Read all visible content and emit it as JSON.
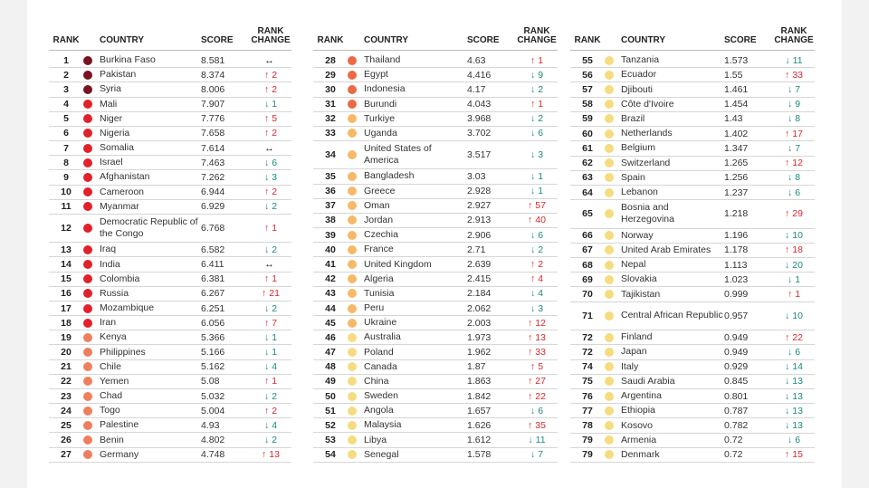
{
  "headers": {
    "rank": "RANK",
    "country": "COUNTRY",
    "score": "SCORE",
    "change": "RANK CHANGE"
  },
  "tier_colors": {
    "extreme_dark": "#7a1222",
    "extreme": "#e3202b",
    "high": "#ef7f5c",
    "high_orange": "#eb6a45",
    "turbulent": "#f6b968",
    "moderate": "#f5dc7e"
  },
  "change_icons": {
    "up": "arrow-up-icon",
    "down": "arrow-down-icon",
    "same": "arrow-left-right-icon"
  },
  "columns": [
    [
      {
        "rank": "1",
        "country": "Burkina Faso",
        "score": "8.581",
        "dir": "same",
        "change": "",
        "tier": "extreme_dark"
      },
      {
        "rank": "2",
        "country": "Pakistan",
        "score": "8.374",
        "dir": "up",
        "change": "2",
        "tier": "extreme_dark"
      },
      {
        "rank": "3",
        "country": "Syria",
        "score": "8.006",
        "dir": "up",
        "change": "2",
        "tier": "extreme_dark"
      },
      {
        "rank": "4",
        "country": "Mali",
        "score": "7.907",
        "dir": "down",
        "change": "1",
        "tier": "extreme"
      },
      {
        "rank": "5",
        "country": "Niger",
        "score": "7.776",
        "dir": "up",
        "change": "5",
        "tier": "extreme"
      },
      {
        "rank": "6",
        "country": "Nigeria",
        "score": "7.658",
        "dir": "up",
        "change": "2",
        "tier": "extreme"
      },
      {
        "rank": "7",
        "country": "Somalia",
        "score": "7.614",
        "dir": "same",
        "change": "",
        "tier": "extreme"
      },
      {
        "rank": "8",
        "country": "Israel",
        "score": "7.463",
        "dir": "down",
        "change": "6",
        "tier": "extreme"
      },
      {
        "rank": "9",
        "country": "Afghanistan",
        "score": "7.262",
        "dir": "down",
        "change": "3",
        "tier": "extreme"
      },
      {
        "rank": "10",
        "country": "Cameroon",
        "score": "6.944",
        "dir": "up",
        "change": "2",
        "tier": "extreme"
      },
      {
        "rank": "11",
        "country": "Myanmar",
        "score": "6.929",
        "dir": "down",
        "change": "2",
        "tier": "extreme"
      },
      {
        "rank": "12",
        "country": "Democratic Republic of the Congo",
        "score": "6.768",
        "dir": "up",
        "change": "1",
        "tier": "extreme",
        "double": true
      },
      {
        "rank": "13",
        "country": "Iraq",
        "score": "6.582",
        "dir": "down",
        "change": "2",
        "tier": "extreme"
      },
      {
        "rank": "14",
        "country": "India",
        "score": "6.411",
        "dir": "same",
        "change": "",
        "tier": "extreme"
      },
      {
        "rank": "15",
        "country": "Colombia",
        "score": "6.381",
        "dir": "up",
        "change": "1",
        "tier": "extreme"
      },
      {
        "rank": "16",
        "country": "Russia",
        "score": "6.267",
        "dir": "up",
        "change": "21",
        "tier": "extreme"
      },
      {
        "rank": "17",
        "country": "Mozambique",
        "score": "6.251",
        "dir": "down",
        "change": "2",
        "tier": "extreme"
      },
      {
        "rank": "18",
        "country": "Iran",
        "score": "6.056",
        "dir": "up",
        "change": "7",
        "tier": "extreme"
      },
      {
        "rank": "19",
        "country": "Kenya",
        "score": "5.366",
        "dir": "down",
        "change": "1",
        "tier": "high"
      },
      {
        "rank": "20",
        "country": "Philippines",
        "score": "5.166",
        "dir": "down",
        "change": "1",
        "tier": "high"
      },
      {
        "rank": "21",
        "country": "Chile",
        "score": "5.162",
        "dir": "down",
        "change": "4",
        "tier": "high"
      },
      {
        "rank": "22",
        "country": "Yemen",
        "score": "5.08",
        "dir": "up",
        "change": "1",
        "tier": "high"
      },
      {
        "rank": "23",
        "country": "Chad",
        "score": "5.032",
        "dir": "down",
        "change": "2",
        "tier": "high"
      },
      {
        "rank": "24",
        "country": "Togo",
        "score": "5.004",
        "dir": "up",
        "change": "2",
        "tier": "high"
      },
      {
        "rank": "25",
        "country": "Palestine",
        "score": "4.93",
        "dir": "down",
        "change": "4",
        "tier": "high"
      },
      {
        "rank": "26",
        "country": "Benin",
        "score": "4.802",
        "dir": "down",
        "change": "2",
        "tier": "high"
      },
      {
        "rank": "27",
        "country": "Germany",
        "score": "4.748",
        "dir": "up",
        "change": "13",
        "tier": "high"
      }
    ],
    [
      {
        "rank": "28",
        "country": "Thailand",
        "score": "4.63",
        "dir": "up",
        "change": "1",
        "tier": "high_orange"
      },
      {
        "rank": "29",
        "country": "Egypt",
        "score": "4.416",
        "dir": "down",
        "change": "9",
        "tier": "high_orange"
      },
      {
        "rank": "30",
        "country": "Indonesia",
        "score": "4.17",
        "dir": "down",
        "change": "2",
        "tier": "high_orange"
      },
      {
        "rank": "31",
        "country": "Burundi",
        "score": "4.043",
        "dir": "up",
        "change": "1",
        "tier": "high_orange"
      },
      {
        "rank": "32",
        "country": "Turkiye",
        "score": "3.968",
        "dir": "down",
        "change": "2",
        "tier": "turbulent"
      },
      {
        "rank": "33",
        "country": "Uganda",
        "score": "3.702",
        "dir": "down",
        "change": "6",
        "tier": "turbulent"
      },
      {
        "rank": "34",
        "country": "United States of America",
        "score": "3.517",
        "dir": "down",
        "change": "3",
        "tier": "turbulent",
        "double": true
      },
      {
        "rank": "35",
        "country": "Bangladesh",
        "score": "3.03",
        "dir": "down",
        "change": "1",
        "tier": "turbulent"
      },
      {
        "rank": "36",
        "country": "Greece",
        "score": "2.928",
        "dir": "down",
        "change": "1",
        "tier": "turbulent"
      },
      {
        "rank": "37",
        "country": "Oman",
        "score": "2.927",
        "dir": "up",
        "change": "57",
        "tier": "turbulent"
      },
      {
        "rank": "38",
        "country": "Jordan",
        "score": "2.913",
        "dir": "up",
        "change": "40",
        "tier": "turbulent"
      },
      {
        "rank": "39",
        "country": "Czechia",
        "score": "2.906",
        "dir": "down",
        "change": "6",
        "tier": "turbulent"
      },
      {
        "rank": "40",
        "country": "France",
        "score": "2.71",
        "dir": "down",
        "change": "2",
        "tier": "turbulent"
      },
      {
        "rank": "41",
        "country": "United Kingdom",
        "score": "2.639",
        "dir": "up",
        "change": "2",
        "tier": "turbulent"
      },
      {
        "rank": "42",
        "country": "Algeria",
        "score": "2.415",
        "dir": "up",
        "change": "4",
        "tier": "turbulent"
      },
      {
        "rank": "43",
        "country": "Tunisia",
        "score": "2.184",
        "dir": "down",
        "change": "4",
        "tier": "turbulent"
      },
      {
        "rank": "44",
        "country": "Peru",
        "score": "2.062",
        "dir": "down",
        "change": "3",
        "tier": "turbulent"
      },
      {
        "rank": "45",
        "country": "Ukraine",
        "score": "2.003",
        "dir": "up",
        "change": "12",
        "tier": "turbulent"
      },
      {
        "rank": "46",
        "country": "Australia",
        "score": "1.973",
        "dir": "up",
        "change": "13",
        "tier": "moderate"
      },
      {
        "rank": "47",
        "country": "Poland",
        "score": "1.962",
        "dir": "up",
        "change": "33",
        "tier": "moderate"
      },
      {
        "rank": "48",
        "country": "Canada",
        "score": "1.87",
        "dir": "up",
        "change": "5",
        "tier": "moderate"
      },
      {
        "rank": "49",
        "country": "China",
        "score": "1.863",
        "dir": "up",
        "change": "27",
        "tier": "moderate"
      },
      {
        "rank": "50",
        "country": "Sweden",
        "score": "1.842",
        "dir": "up",
        "change": "22",
        "tier": "moderate"
      },
      {
        "rank": "51",
        "country": "Angola",
        "score": "1.657",
        "dir": "down",
        "change": "6",
        "tier": "moderate"
      },
      {
        "rank": "52",
        "country": "Malaysia",
        "score": "1.626",
        "dir": "up",
        "change": "35",
        "tier": "moderate"
      },
      {
        "rank": "53",
        "country": "Libya",
        "score": "1.612",
        "dir": "down",
        "change": "11",
        "tier": "moderate"
      },
      {
        "rank": "54",
        "country": "Senegal",
        "score": "1.578",
        "dir": "down",
        "change": "7",
        "tier": "moderate"
      }
    ],
    [
      {
        "rank": "55",
        "country": "Tanzania",
        "score": "1.573",
        "dir": "down",
        "change": "11",
        "tier": "moderate"
      },
      {
        "rank": "56",
        "country": "Ecuador",
        "score": "1.55",
        "dir": "up",
        "change": "33",
        "tier": "moderate"
      },
      {
        "rank": "57",
        "country": "Djibouti",
        "score": "1.461",
        "dir": "down",
        "change": "7",
        "tier": "moderate"
      },
      {
        "rank": "58",
        "country": "Côte d'Ivoire",
        "score": "1.454",
        "dir": "down",
        "change": "9",
        "tier": "moderate"
      },
      {
        "rank": "59",
        "country": "Brazil",
        "score": "1.43",
        "dir": "down",
        "change": "8",
        "tier": "moderate"
      },
      {
        "rank": "60",
        "country": "Netherlands",
        "score": "1.402",
        "dir": "up",
        "change": "17",
        "tier": "moderate"
      },
      {
        "rank": "61",
        "country": "Belgium",
        "score": "1.347",
        "dir": "down",
        "change": "7",
        "tier": "moderate"
      },
      {
        "rank": "62",
        "country": "Switzerland",
        "score": "1.265",
        "dir": "up",
        "change": "12",
        "tier": "moderate"
      },
      {
        "rank": "63",
        "country": "Spain",
        "score": "1.256",
        "dir": "down",
        "change": "8",
        "tier": "moderate"
      },
      {
        "rank": "64",
        "country": "Lebanon",
        "score": "1.237",
        "dir": "down",
        "change": "6",
        "tier": "moderate"
      },
      {
        "rank": "65",
        "country": "Bosnia and Herzegovina",
        "score": "1.218",
        "dir": "up",
        "change": "29",
        "tier": "moderate",
        "double": true
      },
      {
        "rank": "66",
        "country": "Norway",
        "score": "1.196",
        "dir": "down",
        "change": "10",
        "tier": "moderate"
      },
      {
        "rank": "67",
        "country": "United Arab Emirates",
        "score": "1.178",
        "dir": "up",
        "change": "18",
        "tier": "moderate"
      },
      {
        "rank": "68",
        "country": "Nepal",
        "score": "1.113",
        "dir": "down",
        "change": "20",
        "tier": "moderate"
      },
      {
        "rank": "69",
        "country": "Slovakia",
        "score": "1.023",
        "dir": "down",
        "change": "1",
        "tier": "moderate"
      },
      {
        "rank": "70",
        "country": "Tajikistan",
        "score": "0.999",
        "dir": "up",
        "change": "1",
        "tier": "moderate"
      },
      {
        "rank": "71",
        "country": "Central African Republic",
        "score": "0.957",
        "dir": "down",
        "change": "10",
        "tier": "moderate",
        "double": true
      },
      {
        "rank": "72",
        "country": "Finland",
        "score": "0.949",
        "dir": "up",
        "change": "22",
        "tier": "moderate"
      },
      {
        "rank": "72",
        "country": "Japan",
        "score": "0.949",
        "dir": "down",
        "change": "6",
        "tier": "moderate"
      },
      {
        "rank": "74",
        "country": "Italy",
        "score": "0.929",
        "dir": "down",
        "change": "14",
        "tier": "moderate"
      },
      {
        "rank": "75",
        "country": "Saudi Arabia",
        "score": "0.845",
        "dir": "down",
        "change": "13",
        "tier": "moderate"
      },
      {
        "rank": "76",
        "country": "Argentina",
        "score": "0.801",
        "dir": "down",
        "change": "13",
        "tier": "moderate"
      },
      {
        "rank": "77",
        "country": "Ethiopia",
        "score": "0.787",
        "dir": "down",
        "change": "13",
        "tier": "moderate"
      },
      {
        "rank": "78",
        "country": "Kosovo",
        "score": "0.782",
        "dir": "down",
        "change": "13",
        "tier": "moderate"
      },
      {
        "rank": "79",
        "country": "Armenia",
        "score": "0.72",
        "dir": "down",
        "change": "6",
        "tier": "moderate"
      },
      {
        "rank": "79",
        "country": "Denmark",
        "score": "0.72",
        "dir": "up",
        "change": "15",
        "tier": "moderate"
      }
    ]
  ]
}
